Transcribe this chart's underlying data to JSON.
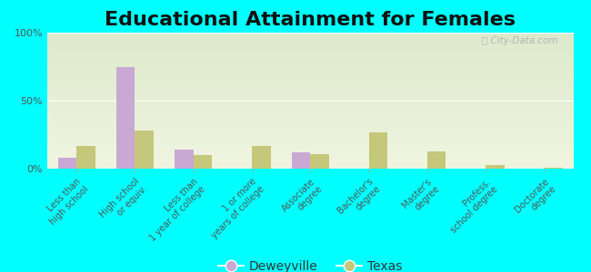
{
  "title": "Educational Attainment for Females",
  "categories": [
    "Less than\nhigh school",
    "High school\nor equiv.",
    "Less than\n1 year of college",
    "1 or more\nyears of college",
    "Associate\ndegree",
    "Bachelor's\ndegree",
    "Master's\ndegree",
    "Profess.\nschool degree",
    "Doctorate\ndegree"
  ],
  "deweyville": [
    8.0,
    75.0,
    14.0,
    0.0,
    12.0,
    0.0,
    0.0,
    0.0,
    0.0
  ],
  "texas": [
    17.0,
    28.0,
    10.0,
    17.0,
    11.0,
    27.0,
    13.0,
    3.0,
    1.0
  ],
  "deweyville_color": "#c9a8d4",
  "texas_color": "#c5c87a",
  "background_color_top": "#ddeacc",
  "background_color_bottom": "#f0f5e0",
  "bg_outer": "#00ffff",
  "ylim": [
    0,
    100
  ],
  "yticks": [
    0,
    50,
    100
  ],
  "ytick_labels": [
    "0%",
    "50%",
    "100%"
  ],
  "title_fontsize": 16,
  "legend_deweyville": "Deweyville",
  "legend_texas": "Texas"
}
